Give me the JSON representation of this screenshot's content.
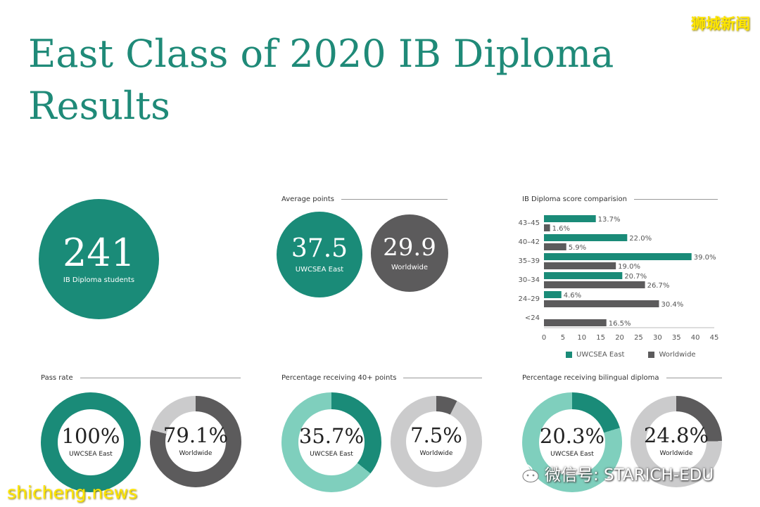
{
  "title": "East Class of 2020 IB Diploma Results",
  "watermarks": {
    "top_right": "狮城新闻",
    "bottom_left": "shicheng.news",
    "wechat": "微信号: STARICH-EDU"
  },
  "colors": {
    "east": "#1a8b78",
    "east_light": "#7fcfbd",
    "worldwide": "#5c5b5c",
    "worldwide_light": "#cbcbcc"
  },
  "students": {
    "value": "241",
    "caption": "IB Diploma students"
  },
  "average_points": {
    "label": "Average points",
    "east": {
      "value": "37.5",
      "caption": "UWCSEA East"
    },
    "worldwide": {
      "value": "29.9",
      "caption": "Worldwide"
    }
  },
  "pass_rate": {
    "label": "Pass rate",
    "east": {
      "text": "100%",
      "caption": "UWCSEA East",
      "percent": 100
    },
    "worldwide": {
      "text": "79.1%",
      "caption": "Worldwide",
      "percent": 79.1
    }
  },
  "forty_plus": {
    "label": "Percentage receiving 40+ points",
    "east": {
      "text": "35.7%",
      "caption": "UWCSEA East",
      "percent": 35.7
    },
    "worldwide": {
      "text": "7.5%",
      "caption": "Worldwide",
      "percent": 7.5
    }
  },
  "bilingual": {
    "label": "Percentage receiving bilingual diploma",
    "east": {
      "text": "20.3%",
      "caption": "UWCSEA East",
      "percent": 20.3
    },
    "worldwide": {
      "text": "24.8%",
      "caption": "Worldwide",
      "percent": 24.8
    }
  },
  "chart_data": {
    "type": "bar",
    "orientation": "horizontal",
    "title": "IB Diploma score comparision",
    "categories": [
      "43–45",
      "40–42",
      "35–39",
      "30–34",
      "24–29",
      "<24"
    ],
    "series": [
      {
        "name": "UWCSEA East",
        "values": [
          13.7,
          22.0,
          39.0,
          20.7,
          4.6,
          null
        ],
        "labels": [
          "13.7%",
          "22.0%",
          "39.0%",
          "20.7%",
          "4.6%",
          ""
        ]
      },
      {
        "name": "Worldwide",
        "values": [
          1.6,
          5.9,
          19.0,
          26.7,
          30.4,
          16.5
        ],
        "labels": [
          "1.6%",
          "5.9%",
          "19.0%",
          "26.7%",
          "30.4%",
          "16.5%"
        ]
      }
    ],
    "xlim": [
      0,
      45
    ],
    "xticks": [
      "0",
      "5",
      "10",
      "15",
      "20",
      "25",
      "30",
      "35",
      "40",
      "45"
    ],
    "legend": "bottom"
  }
}
